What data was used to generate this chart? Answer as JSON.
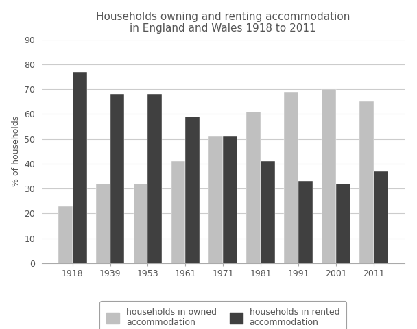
{
  "title_line1": "Households owning and renting accommodation",
  "title_line2": "in England and Wales 1918 to 2011",
  "ylabel": "% of households",
  "years": [
    "1918",
    "1939",
    "1953",
    "1961",
    "1971",
    "1981",
    "1991",
    "2001",
    "2011"
  ],
  "owned": [
    23,
    32,
    32,
    41,
    51,
    61,
    69,
    70,
    65
  ],
  "rented": [
    77,
    68,
    68,
    59,
    51,
    41,
    33,
    32,
    37
  ],
  "owned_color": "#c0c0c0",
  "rented_color": "#404040",
  "ylim": [
    0,
    90
  ],
  "yticks": [
    0,
    10,
    20,
    30,
    40,
    50,
    60,
    70,
    80,
    90
  ],
  "legend_owned": "households in owned\naccommodation",
  "legend_rented": "households in rented\naccommodation",
  "title_fontsize": 11,
  "axis_fontsize": 9,
  "tick_fontsize": 9,
  "bar_width": 0.38,
  "background_color": "#ffffff",
  "grid_color": "#cccccc",
  "title_color": "#555555"
}
